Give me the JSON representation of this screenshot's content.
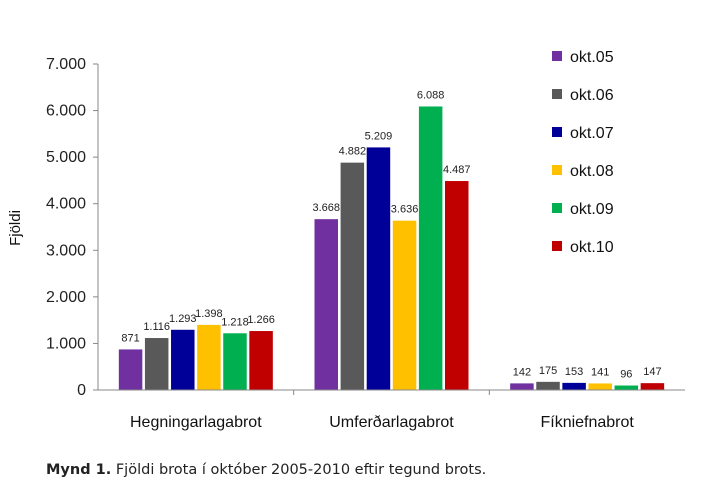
{
  "chart_data": {
    "type": "bar",
    "categories": [
      "Hegningarlagabrot",
      "Umferðarlagabrot",
      "Fíkniefnabrot"
    ],
    "series": [
      {
        "name": "okt.05",
        "color": "#7030a0",
        "values": [
          871,
          3668,
          142
        ],
        "labels": [
          "871",
          "3.668",
          "142"
        ]
      },
      {
        "name": "okt.06",
        "color": "#595959",
        "values": [
          1116,
          4882,
          175
        ],
        "labels": [
          "1.116",
          "4.882",
          "175"
        ]
      },
      {
        "name": "okt.07",
        "color": "#000099",
        "values": [
          1293,
          5209,
          153
        ],
        "labels": [
          "1.293",
          "5.209",
          "153"
        ]
      },
      {
        "name": "okt.08",
        "color": "#ffc000",
        "values": [
          1398,
          3636,
          141
        ],
        "labels": [
          "1.398",
          "3.636",
          "141"
        ]
      },
      {
        "name": "okt.09",
        "color": "#00b050",
        "values": [
          1218,
          6088,
          96
        ],
        "labels": [
          "1.218",
          "6.088",
          "96"
        ]
      },
      {
        "name": "okt.10",
        "color": "#c00000",
        "values": [
          1266,
          4487,
          147
        ],
        "labels": [
          "1.266",
          "4.487",
          "147"
        ]
      }
    ],
    "ylabel": "Fjöldi",
    "ylim": [
      0,
      7000
    ],
    "yticks": [
      0,
      1000,
      2000,
      3000,
      4000,
      5000,
      6000,
      7000
    ],
    "ytick_labels": [
      "0",
      "1.000",
      "2.000",
      "3.000",
      "4.000",
      "5.000",
      "6.000",
      "7.000"
    ],
    "grid": false,
    "legend_position": "right"
  },
  "caption": {
    "prefix": "Mynd 1.",
    "text": " Fjöldi brota í október 2005-2010 eftir tegund brots."
  }
}
